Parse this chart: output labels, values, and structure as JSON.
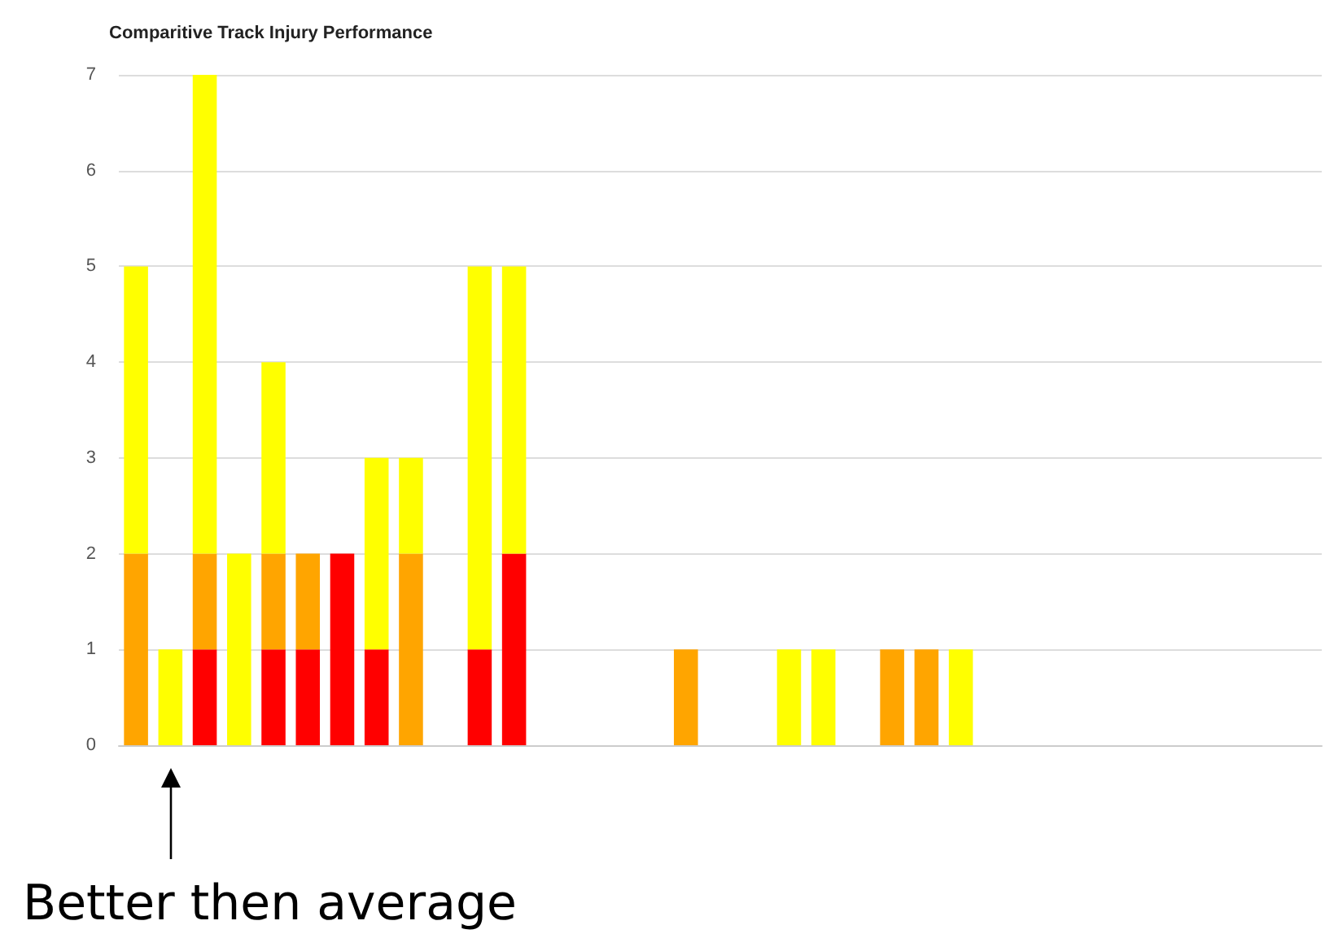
{
  "chart_data": {
    "type": "bar",
    "title": "Comparitive Track Injury Performance",
    "stacked": true,
    "grid": "y",
    "categories": [
      null,
      null,
      null,
      null,
      null,
      null,
      null,
      null,
      null,
      null,
      null,
      null,
      null,
      null,
      null,
      null,
      null,
      null,
      null,
      null,
      null,
      null,
      null,
      null,
      null,
      null,
      null,
      null,
      null,
      null,
      null,
      null,
      null,
      null,
      null
    ],
    "series": [
      {
        "color": "#ff0000",
        "values": [
          0,
          0,
          1,
          0,
          1,
          1,
          2,
          1,
          0,
          0,
          1,
          2,
          0,
          0,
          0,
          0,
          0,
          0,
          0,
          0,
          0,
          0,
          0,
          0,
          0,
          0,
          0,
          0,
          0,
          0,
          0,
          0,
          0,
          0,
          0
        ]
      },
      {
        "color": "#ffa500",
        "values": [
          2,
          0,
          1,
          0,
          1,
          1,
          0,
          0,
          2,
          0,
          0,
          0,
          0,
          0,
          0,
          0,
          1,
          0,
          0,
          0,
          0,
          0,
          1,
          1,
          0,
          0,
          0,
          0,
          0,
          0,
          0,
          0,
          0,
          0,
          0
        ]
      },
      {
        "color": "#ffff00",
        "values": [
          3,
          1,
          5,
          2,
          2,
          0,
          0,
          2,
          1,
          0,
          4,
          3,
          0,
          0,
          0,
          0,
          0,
          0,
          0,
          1,
          1,
          0,
          0,
          0,
          1,
          0,
          0,
          0,
          0,
          0,
          0,
          0,
          0,
          0,
          0
        ]
      }
    ],
    "ylim": [
      0,
      7
    ],
    "yticks": [
      0,
      1,
      2,
      3,
      4,
      5,
      6,
      7
    ],
    "annotations": [
      "Better then average"
    ]
  }
}
